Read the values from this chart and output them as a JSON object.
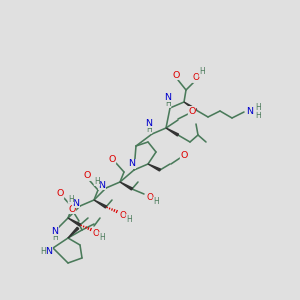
{
  "bg_color": "#e0e0e0",
  "C_color": "#4a7a5a",
  "N_color": "#0000cc",
  "O_color": "#dd0000",
  "H_color": "#4a7a5a",
  "bond_color": "#4a7a5a",
  "fig_size": [
    3.0,
    3.0
  ],
  "dpi": 100,
  "xlim": [
    0,
    300
  ],
  "ylim": [
    0,
    300
  ]
}
